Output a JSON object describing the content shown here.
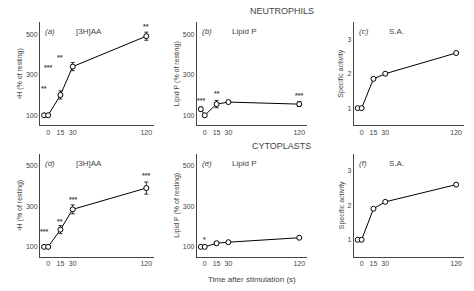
{
  "chart_data": {
    "type": "grid",
    "grid": false,
    "xlabel": "Time after stimulation (s)",
    "xlim": [
      -10,
      130
    ],
    "xticks": [
      0,
      15,
      30,
      120
    ],
    "rows": [
      {
        "title": "NEUTROPHILS",
        "charts": [
          {
            "type": "line",
            "label": "(a)",
            "title": "[3H]AA",
            "ylabel": "³H (% of resting)",
            "x": [
              -5,
              0,
              15,
              30,
              120
            ],
            "values": [
              100,
              100,
              200,
              340,
              490
            ],
            "yerr": [
              0,
              0,
              20,
              20,
              20
            ],
            "ylim": [
              50,
              560
            ],
            "yticks": [
              100,
              300,
              500
            ],
            "color": "black",
            "marker": "circle",
            "annotations": [
              {
                "text": "**",
                "x": -5,
                "y": 205
              },
              {
                "text": "***",
                "x": 0,
                "y": 310
              },
              {
                "text": "**",
                "x": 15,
                "y": 360
              },
              {
                "text": "**",
                "x": 120,
                "y": 512
              }
            ]
          },
          {
            "type": "line",
            "label": "(b)",
            "title": "Lipid P",
            "ylabel": "Lipid P (% of resting)",
            "x": [
              -5,
              0,
              15,
              30,
              120
            ],
            "values": [
              130,
              100,
              155,
              165,
              155
            ],
            "yerr": [
              10,
              0,
              18,
              0,
              12
            ],
            "ylim": [
              50,
              560
            ],
            "yticks": [
              100,
              300,
              500
            ],
            "color": "black",
            "marker": "circle",
            "annotations": [
              {
                "text": "***",
                "x": -5,
                "y": 148
              },
              {
                "text": "**",
                "x": 15,
                "y": 182
              },
              {
                "text": "***",
                "x": 120,
                "y": 170
              }
            ]
          },
          {
            "type": "line",
            "label": "(c)",
            "title": "S.A.",
            "ylabel": "Specific activity",
            "x": [
              -5,
              0,
              15,
              30,
              120
            ],
            "values": [
              1.0,
              1.0,
              1.85,
              2.0,
              2.6
            ],
            "yerr": [
              0,
              0,
              0,
              0,
              0
            ],
            "ylim": [
              0.5,
              3.5
            ],
            "yticks": [
              1,
              2,
              3
            ],
            "color": "black",
            "marker": "circle",
            "annotations": []
          }
        ]
      },
      {
        "title": "CYTOPLASTS",
        "charts": [
          {
            "type": "line",
            "label": "(d)",
            "title": "[3H]AA",
            "ylabel": "³H (% of resting)",
            "x": [
              -5,
              0,
              15,
              30,
              120
            ],
            "values": [
              100,
              100,
              185,
              285,
              390
            ],
            "yerr": [
              8,
              0,
              20,
              22,
              30
            ],
            "ylim": [
              50,
              560
            ],
            "yticks": [
              100,
              300,
              500
            ],
            "color": "black",
            "marker": "circle",
            "annotations": [
              {
                "text": "***",
                "x": -5,
                "y": 148
              },
              {
                "text": "**",
                "x": 15,
                "y": 200
              },
              {
                "text": "***",
                "x": 30,
                "y": 308
              },
              {
                "text": "***",
                "x": 120,
                "y": 425
              }
            ]
          },
          {
            "type": "line",
            "label": "(e)",
            "title": "Lipid P",
            "ylabel": "Lipid P (% of resting)",
            "x": [
              -5,
              0,
              15,
              30,
              120
            ],
            "values": [
              100,
              100,
              118,
              123,
              145
            ],
            "yerr": [
              0,
              0,
              8,
              5,
              0
            ],
            "ylim": [
              50,
              560
            ],
            "yticks": [
              100,
              300,
              500
            ],
            "color": "black",
            "marker": "circle",
            "annotations": [
              {
                "text": "*",
                "x": 0,
                "y": 108
              }
            ]
          },
          {
            "type": "line",
            "label": "(f)",
            "title": "S.A.",
            "ylabel": "Specific activity",
            "x": [
              -5,
              0,
              15,
              30,
              120
            ],
            "values": [
              1.0,
              1.0,
              1.9,
              2.1,
              2.6
            ],
            "yerr": [
              0,
              0,
              0,
              0,
              0
            ],
            "ylim": [
              0.5,
              3.5
            ],
            "yticks": [
              1,
              2,
              3
            ],
            "color": "black",
            "marker": "circle",
            "annotations": []
          }
        ]
      }
    ]
  }
}
